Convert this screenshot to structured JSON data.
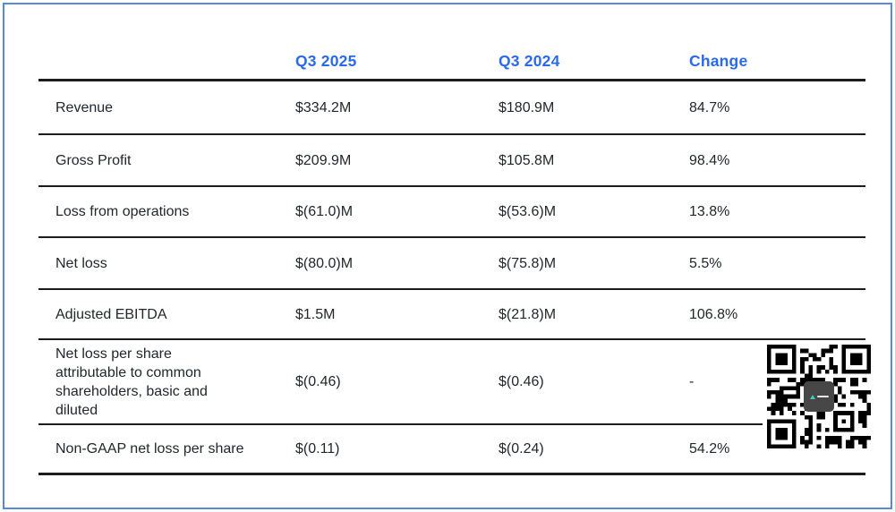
{
  "colors": {
    "header_blue": "#2a6ae8",
    "text_color": "#21272a",
    "rule_color": "#1c1c1c",
    "frame_blue": "#5b87d8",
    "qr_logo_gray": "#474747"
  },
  "chart_data": {
    "type": "table",
    "title": "",
    "columns": [
      "",
      "Q3 2025",
      "Q3 2024",
      "Change"
    ],
    "rows": [
      {
        "label": "Revenue",
        "q3_2025": "$334.2M",
        "q3_2024": "$180.9M",
        "change": "84.7%"
      },
      {
        "label": "Gross Profit",
        "q3_2025": "$209.9M",
        "q3_2024": "$105.8M",
        "change": "98.4%"
      },
      {
        "label": "Loss from operations",
        "q3_2025": "$(61.0)M",
        "q3_2024": "$(53.6)M",
        "change": "13.8%"
      },
      {
        "label": "Net loss",
        "q3_2025": "$(80.0)M",
        "q3_2024": "$(75.8)M",
        "change": "5.5%"
      },
      {
        "label": "Adjusted EBITDA",
        "q3_2025": "$1.5M",
        "q3_2024": "$(21.8)M",
        "change": "106.8%"
      },
      {
        "label": "Net loss per share attributable to common shareholders, basic and diluted",
        "q3_2025": "$(0.46)",
        "q3_2024": "$(0.46)",
        "change": "-"
      },
      {
        "label": "Non-GAAP net loss per share",
        "q3_2025": "$(0.11)",
        "q3_2024": "$(0.24)",
        "change": "54.2%"
      }
    ],
    "layout": {
      "grid": "horizontal rules only",
      "header_style": "bold blue",
      "legend": "none"
    }
  },
  "qr": {
    "name": "qr-code-with-center-logo"
  }
}
